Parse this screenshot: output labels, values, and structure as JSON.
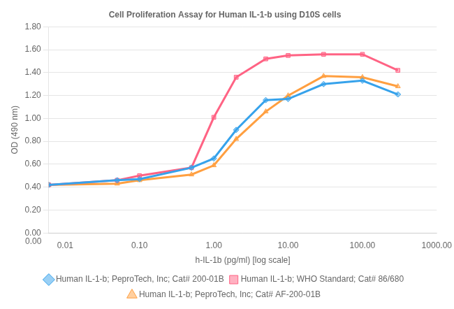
{
  "chart_data": {
    "type": "line",
    "title": "Cell Proliferation Assay for Human IL-1-b using D10S cells",
    "x_label": "h-IL-1b (pg/ml) [log scale]",
    "y_label": "OD (490 nm)",
    "log": "x",
    "grid": "y",
    "legend": "bottom",
    "xlim": [
      0.006,
      1000.0
    ],
    "xticks": [
      0.01,
      {
        "value": 0.1,
        "label": "0.10"
      },
      {
        "value": 1.0,
        "label": "1.00"
      },
      {
        "value": 10.0,
        "label": "10.00"
      },
      {
        "value": 100.0,
        "label": "100.00"
      },
      {
        "value": 1000.0,
        "label": "1000.00"
      }
    ],
    "ylim": [
      0.0,
      1.8
    ],
    "yticks": [
      {
        "value": 0.0,
        "label": "0.00"
      },
      {
        "value": 0.2,
        "label": "0.20"
      },
      {
        "value": 0.4,
        "label": "0.40"
      },
      {
        "value": 0.6,
        "label": "0.60"
      },
      {
        "value": 0.8,
        "label": "0.80"
      },
      {
        "value": 1.0,
        "label": "1.00"
      },
      {
        "value": 1.2,
        "label": "1.20"
      },
      {
        "value": 1.4,
        "label": "1.40"
      },
      {
        "value": 1.6,
        "label": "1.60"
      },
      {
        "value": 1.8,
        "label": "1.80"
      }
    ],
    "annotations": [
      {
        "text": "0.00"
      }
    ],
    "x": [
      0.006,
      0.05,
      0.1,
      0.5,
      1.0,
      2.0,
      5.0,
      10.0,
      30.0,
      100.0,
      300.0
    ],
    "series": [
      {
        "name": "Human IL-1-b; PeproTech, Inc; Cat# 200-01B",
        "marker": "diamond",
        "values": [
          0.42,
          0.46,
          0.47,
          0.57,
          0.65,
          0.9,
          1.16,
          1.17,
          1.3,
          1.33,
          1.21
        ]
      },
      {
        "name": "Human IL-1-b; WHO Standard; Cat# 86/680",
        "marker": "square",
        "values": [
          0.42,
          0.46,
          0.5,
          0.57,
          1.01,
          1.36,
          1.52,
          1.55,
          1.56,
          1.56,
          1.42
        ]
      },
      {
        "name": "Human IL-1-b; PeproTech, Inc; Cat# AF-200-01B",
        "marker": "triangle",
        "values": [
          0.42,
          0.43,
          0.46,
          0.51,
          0.59,
          0.82,
          1.06,
          1.2,
          1.37,
          1.36,
          1.28
        ]
      }
    ]
  }
}
